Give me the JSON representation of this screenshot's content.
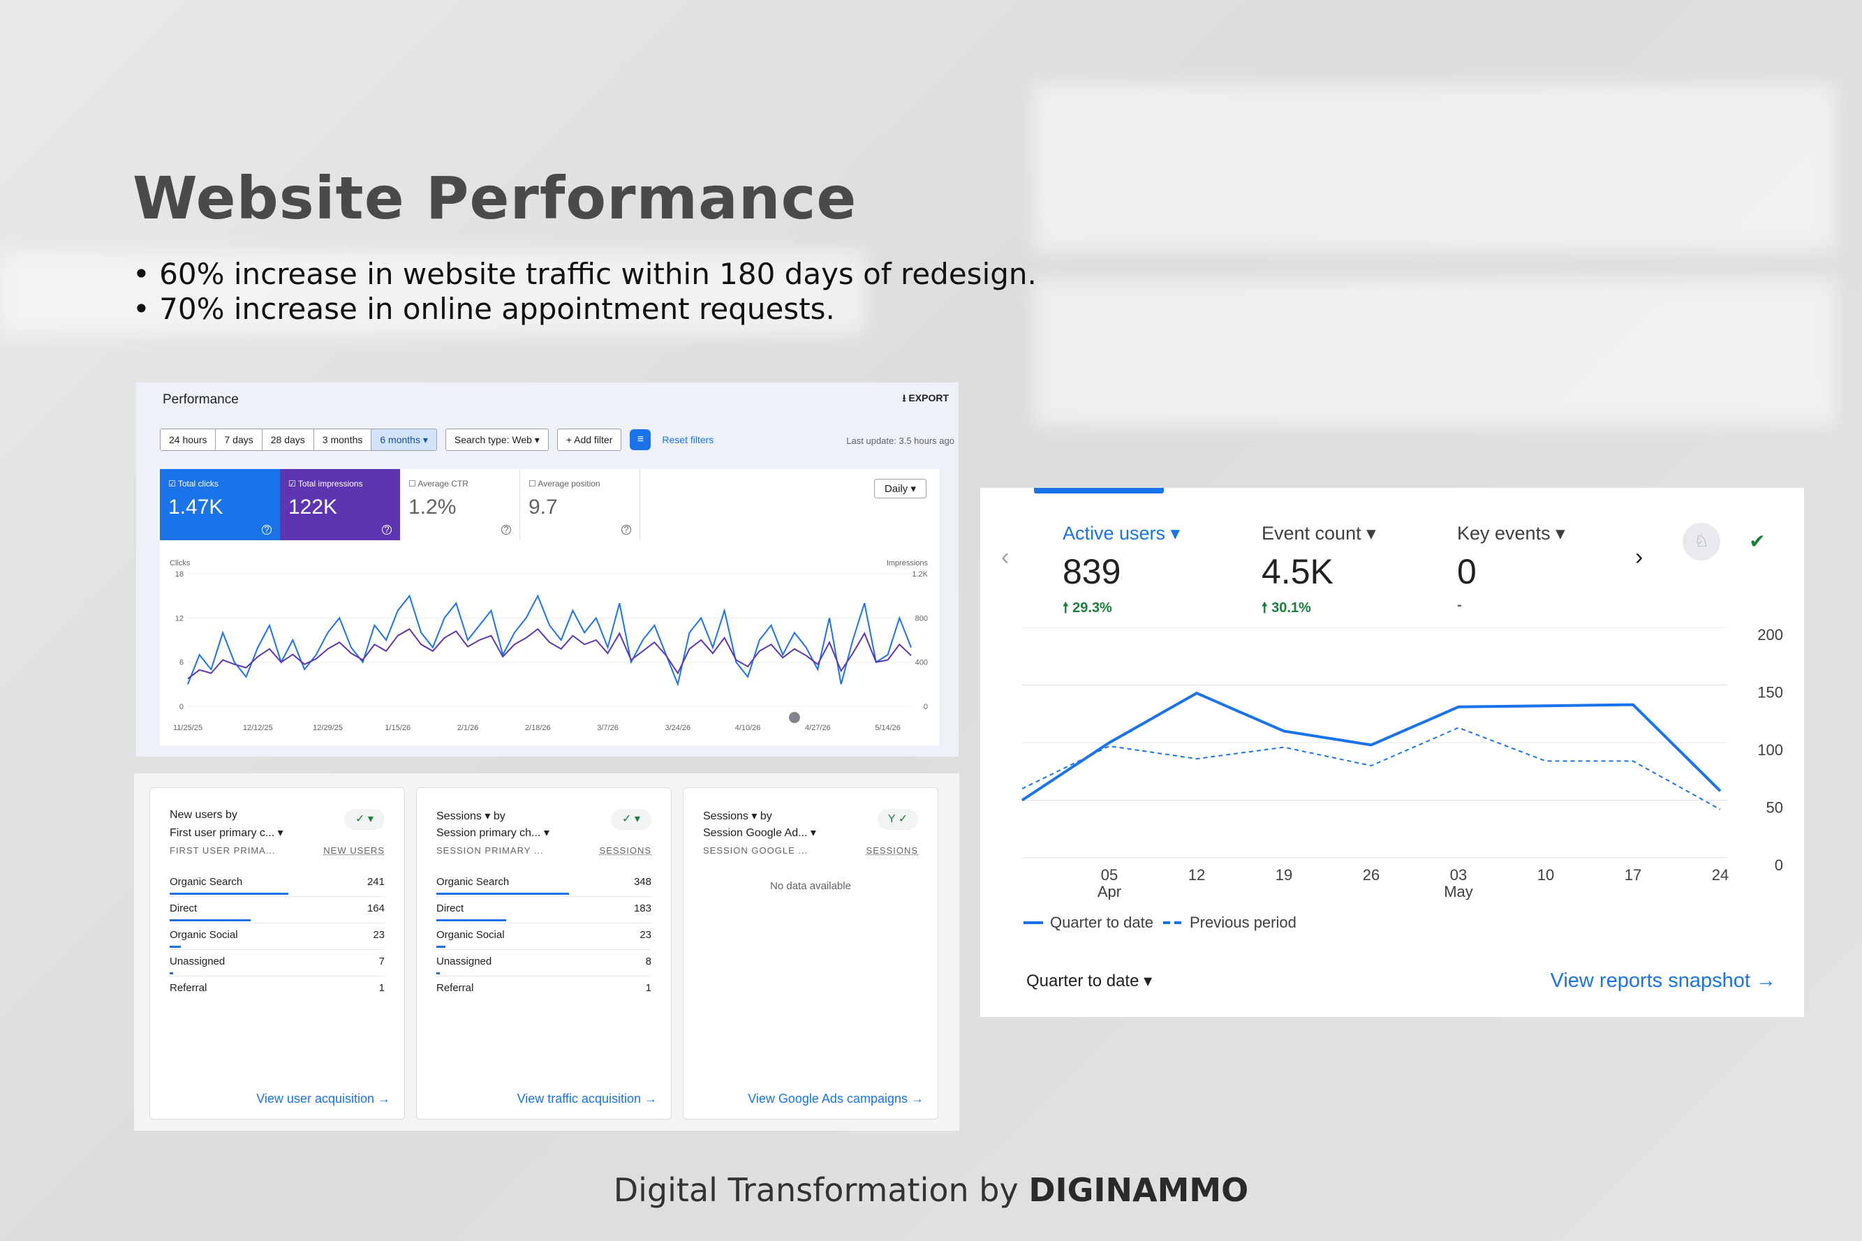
{
  "headline": {
    "title": "Website Performance",
    "bullets": [
      "• 60% increase in website traffic within 180 days of redesign.",
      "• 70% increase in online appointment requests."
    ]
  },
  "footer": {
    "prefix": "Digital Transformation by ",
    "brand": "DIGINAMMO"
  },
  "search_console": {
    "title": "Performance",
    "export": "⭳  EXPORT",
    "ranges": [
      "24 hours",
      "7 days",
      "28 days",
      "3 months",
      "6 months ▾"
    ],
    "search_type": "Search type: Web ▾",
    "add_filter": "+ Add filter",
    "reset_filters": "Reset filters",
    "last_update": "Last update: 3.5 hours ago",
    "daily": "Daily ▾",
    "metrics": [
      {
        "label": "☑ Total clicks",
        "value": "1.47K"
      },
      {
        "label": "☑ Total impressions",
        "value": "122K"
      },
      {
        "label": "☐ Average CTR",
        "value": "1.2%"
      },
      {
        "label": "☐ Average position",
        "value": "9.7"
      }
    ],
    "colors": {
      "clicks": "#1a73e8",
      "impressions": "#5e35b1"
    }
  },
  "reports": [
    {
      "title1": "New users by",
      "title2": "First user primary c... ▾",
      "col1": "FIRST USER PRIMA...",
      "col2": "NEW USERS",
      "rows": [
        {
          "n": "Organic Search",
          "v": "241"
        },
        {
          "n": "Direct",
          "v": "164"
        },
        {
          "n": "Organic Social",
          "v": "23"
        },
        {
          "n": "Unassigned",
          "v": "7"
        },
        {
          "n": "Referral",
          "v": "1"
        }
      ],
      "link": "View user acquisition  →"
    },
    {
      "title1": "Sessions ▾ by",
      "title2": "Session primary ch... ▾",
      "col1": "SESSION PRIMARY ...",
      "col2": "SESSIONS",
      "rows": [
        {
          "n": "Organic Search",
          "v": "348"
        },
        {
          "n": "Direct",
          "v": "183"
        },
        {
          "n": "Organic Social",
          "v": "23"
        },
        {
          "n": "Unassigned",
          "v": "8"
        },
        {
          "n": "Referral",
          "v": "1"
        }
      ],
      "link": "View traffic acquisition  →"
    },
    {
      "title1": "Sessions ▾ by",
      "title2": "Session Google Ad... ▾",
      "col1": "SESSION GOOGLE ...",
      "col2": "SESSIONS",
      "nodata": "No data available",
      "link": "View Google Ads campaigns  →"
    }
  ],
  "analytics": {
    "metrics": [
      {
        "label": "Active users ▾",
        "value": "839",
        "change": "🠕 29.3%"
      },
      {
        "label": "Event count ▾",
        "value": "4.5K",
        "change": "🠕 30.1%"
      },
      {
        "label": "Key events ▾",
        "value": "0",
        "change": "-"
      }
    ],
    "legend_current": "Quarter to date",
    "legend_previous": "Previous period",
    "date_range": "Quarter to date   ▾",
    "link": "View reports snapshot  →"
  },
  "chart_data": [
    {
      "type": "line",
      "x": [
        "11/25/25",
        "11/28/25",
        "12/1/25",
        "12/4/25",
        "12/7/25",
        "12/10/25",
        "12/12/25",
        "12/15/25",
        "12/18/25",
        "12/21/25",
        "12/24/25",
        "12/27/25",
        "12/29/25",
        "1/1/26",
        "1/4/26",
        "1/7/26",
        "1/10/26",
        "1/13/26",
        "1/15/26",
        "1/18/26",
        "1/21/26",
        "1/24/26",
        "1/27/26",
        "1/30/26",
        "2/1/26",
        "2/4/26",
        "2/7/26",
        "2/10/26",
        "2/13/26",
        "2/16/26",
        "2/18/26",
        "2/21/26",
        "2/24/26",
        "2/27/26",
        "3/2/26",
        "3/5/26",
        "3/7/26",
        "3/10/26",
        "3/13/26",
        "3/16/26",
        "3/19/26",
        "3/22/26",
        "3/24/26",
        "3/27/26",
        "3/30/26",
        "4/2/26",
        "4/5/26",
        "4/8/26",
        "4/10/26",
        "4/13/26",
        "4/16/26",
        "4/19/26",
        "4/22/26",
        "4/25/26",
        "4/27/26",
        "4/30/26",
        "5/3/26",
        "5/6/26",
        "5/9/26",
        "5/12/26",
        "5/14/26",
        "5/17/26",
        "5/20/26"
      ],
      "x_ticks": [
        "11/25/25",
        "12/12/25",
        "12/29/25",
        "1/15/26",
        "2/1/26",
        "2/18/26",
        "3/7/26",
        "3/24/26",
        "4/10/26",
        "4/27/26",
        "5/14/26"
      ],
      "series": [
        {
          "name": "Clicks",
          "axis": "left",
          "values": [
            3,
            7,
            5,
            10,
            6,
            4,
            8,
            11,
            6,
            9,
            5,
            7,
            10,
            12,
            8,
            6,
            11,
            9,
            13,
            15,
            10,
            8,
            12,
            14,
            9,
            11,
            13,
            7,
            10,
            12,
            15,
            11,
            9,
            13,
            10,
            12,
            8,
            14,
            6,
            9,
            11,
            7,
            3,
            10,
            12,
            8,
            13,
            6,
            4,
            9,
            11,
            7,
            10,
            8,
            5,
            12,
            3,
            9,
            14,
            6,
            7,
            12,
            8
          ]
        },
        {
          "name": "Impressions",
          "axis": "right",
          "values": [
            250,
            330,
            300,
            420,
            380,
            350,
            450,
            520,
            400,
            470,
            380,
            430,
            520,
            580,
            480,
            420,
            560,
            500,
            640,
            700,
            560,
            500,
            620,
            680,
            540,
            600,
            640,
            450,
            560,
            620,
            700,
            580,
            520,
            640,
            560,
            600,
            480,
            660,
            420,
            500,
            580,
            460,
            300,
            520,
            600,
            480,
            620,
            420,
            360,
            500,
            560,
            440,
            520,
            460,
            380,
            580,
            320,
            480,
            660,
            400,
            420,
            560,
            460
          ]
        }
      ],
      "xlabel": "",
      "ylabel_left": "Clicks",
      "ylabel_right": "Impressions",
      "ylim_left": [
        0,
        18
      ],
      "ylim_right": [
        0,
        1200
      ],
      "y_ticks_left": [
        "18",
        "12",
        "6",
        "0"
      ],
      "y_ticks_right": [
        "1.2K",
        "800",
        "400",
        "0"
      ]
    },
    {
      "type": "line",
      "x": [
        "03/29",
        "04/05",
        "04/12",
        "04/19",
        "04/26",
        "05/03",
        "05/10",
        "05/17",
        "05/24"
      ],
      "x_tick_labels": [
        {
          "d": "05",
          "m": "Apr"
        },
        {
          "d": "12",
          "m": ""
        },
        {
          "d": "19",
          "m": ""
        },
        {
          "d": "26",
          "m": ""
        },
        {
          "d": "03",
          "m": "May"
        },
        {
          "d": "10",
          "m": ""
        },
        {
          "d": "17",
          "m": ""
        },
        {
          "d": "24",
          "m": ""
        }
      ],
      "series": [
        {
          "name": "Quarter to date",
          "values": [
            50,
            100,
            143,
            110,
            98,
            131,
            132,
            133,
            58
          ]
        },
        {
          "name": "Previous period",
          "values": [
            60,
            97,
            86,
            96,
            80,
            113,
            84,
            84,
            42
          ]
        }
      ],
      "ylim": [
        0,
        200
      ],
      "y_ticks": [
        "200",
        "150",
        "100",
        "50",
        "0"
      ]
    }
  ]
}
